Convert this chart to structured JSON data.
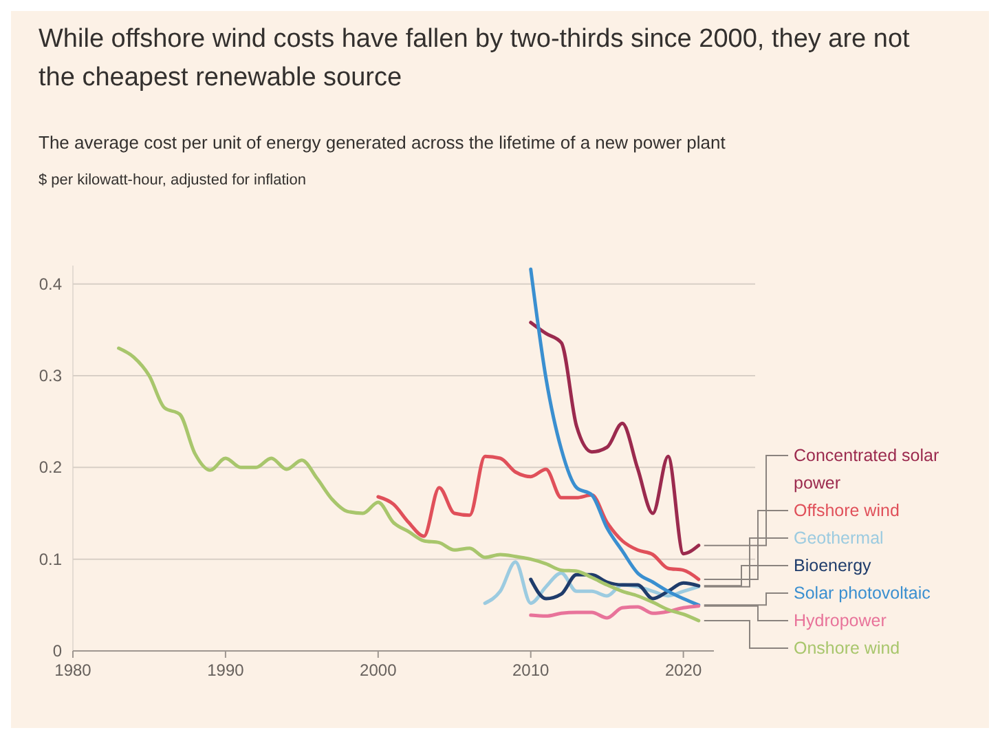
{
  "chart_data": {
    "type": "line",
    "title": "While offshore wind costs have fallen by two-thirds since 2000, they are not the cheapest renewable source",
    "subtitle": "The average cost per unit of energy generated across the lifetime of a new power plant",
    "annotations": [
      "$ per kilowatt-hour, adjusted for inflation"
    ],
    "xlim": [
      1980,
      2022
    ],
    "xticks": [
      1980,
      1990,
      2000,
      2010,
      2020
    ],
    "ylim": [
      0,
      0.42
    ],
    "yticks": [
      0,
      0.1,
      0.2,
      0.3,
      0.4
    ],
    "grid": "y",
    "legend": "right",
    "marker": "none",
    "line_style": "solid",
    "series": [
      {
        "name": "Concentrated solar power",
        "color": "#9b2a4e",
        "x": [
          2010,
          2011,
          2012,
          2013,
          2014,
          2015,
          2016,
          2017,
          2018,
          2019,
          2020,
          2021
        ],
        "values": [
          0.358,
          0.346,
          0.336,
          0.245,
          0.217,
          0.222,
          0.248,
          0.199,
          0.15,
          0.212,
          0.106,
          0.115
        ]
      },
      {
        "name": "Offshore wind",
        "color": "#e0505a",
        "x": [
          2000,
          2001,
          2002,
          2003,
          2004,
          2005,
          2006,
          2007,
          2008,
          2009,
          2010,
          2011,
          2012,
          2013,
          2014,
          2015,
          2016,
          2017,
          2018,
          2019,
          2020,
          2021
        ],
        "values": [
          0.168,
          0.16,
          0.14,
          0.125,
          0.178,
          0.15,
          0.148,
          0.212,
          0.21,
          0.195,
          0.19,
          0.198,
          0.167,
          0.167,
          0.17,
          0.14,
          0.12,
          0.11,
          0.105,
          0.09,
          0.088,
          0.078
        ]
      },
      {
        "name": "Geothermal",
        "color": "#9ccbe0",
        "x": [
          2007,
          2008,
          2009,
          2010,
          2011,
          2012,
          2013,
          2014,
          2015,
          2016,
          2017,
          2018,
          2019,
          2020,
          2021
        ],
        "values": [
          0.052,
          0.065,
          0.097,
          0.052,
          0.07,
          0.085,
          0.065,
          0.065,
          0.06,
          0.072,
          0.07,
          0.065,
          0.06,
          0.065,
          0.07
        ]
      },
      {
        "name": "Bioenergy",
        "color": "#1f3c6b",
        "x": [
          2010,
          2011,
          2012,
          2013,
          2014,
          2015,
          2016,
          2017,
          2018,
          2019,
          2020,
          2021
        ],
        "values": [
          0.078,
          0.057,
          0.062,
          0.083,
          0.083,
          0.075,
          0.072,
          0.072,
          0.057,
          0.065,
          0.074,
          0.071
        ]
      },
      {
        "name": "Solar photovoltaic",
        "color": "#3a8fd0",
        "x": [
          2010,
          2011,
          2012,
          2013,
          2014,
          2015,
          2016,
          2017,
          2018,
          2019,
          2020,
          2021
        ],
        "values": [
          0.416,
          0.297,
          0.22,
          0.178,
          0.17,
          0.134,
          0.109,
          0.085,
          0.075,
          0.065,
          0.057,
          0.05
        ]
      },
      {
        "name": "Hydropower",
        "color": "#e8739a",
        "x": [
          2010,
          2011,
          2012,
          2013,
          2014,
          2015,
          2016,
          2017,
          2018,
          2019,
          2020,
          2021
        ],
        "values": [
          0.039,
          0.038,
          0.041,
          0.042,
          0.042,
          0.036,
          0.047,
          0.048,
          0.041,
          0.043,
          0.047,
          0.049
        ]
      },
      {
        "name": "Onshore wind",
        "color": "#a8c66c",
        "x": [
          1983,
          1984,
          1985,
          1986,
          1987,
          1988,
          1989,
          1990,
          1991,
          1992,
          1993,
          1994,
          1995,
          1996,
          1997,
          1998,
          1999,
          2000,
          2001,
          2002,
          2003,
          2004,
          2005,
          2006,
          2007,
          2008,
          2009,
          2010,
          2011,
          2012,
          2013,
          2014,
          2015,
          2016,
          2017,
          2018,
          2019,
          2020,
          2021
        ],
        "values": [
          0.33,
          0.32,
          0.3,
          0.265,
          0.258,
          0.215,
          0.197,
          0.21,
          0.2,
          0.2,
          0.21,
          0.198,
          0.208,
          0.188,
          0.165,
          0.152,
          0.15,
          0.162,
          0.14,
          0.13,
          0.12,
          0.118,
          0.11,
          0.112,
          0.102,
          0.105,
          0.103,
          0.1,
          0.095,
          0.088,
          0.087,
          0.08,
          0.072,
          0.065,
          0.06,
          0.053,
          0.045,
          0.04,
          0.033
        ]
      }
    ]
  }
}
